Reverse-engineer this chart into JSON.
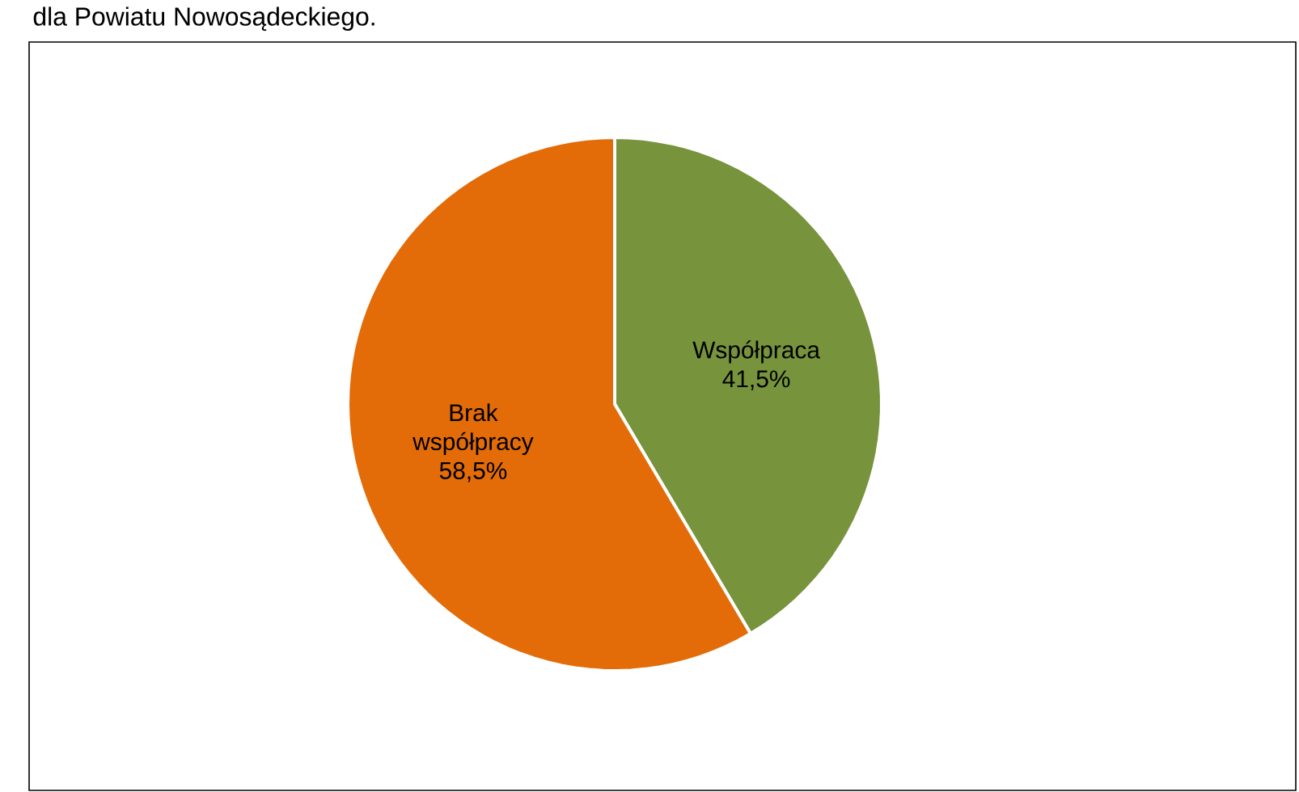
{
  "chart_data": {
    "type": "pie",
    "title": "dla Powiatu Nowosądeckiego.",
    "categories": [
      "Współpraca",
      "Brak współpracy"
    ],
    "values": [
      41.5,
      58.5
    ],
    "value_labels": [
      "41,5%",
      "58,5%"
    ],
    "colors": [
      "#77933c",
      "#e36c09"
    ]
  }
}
